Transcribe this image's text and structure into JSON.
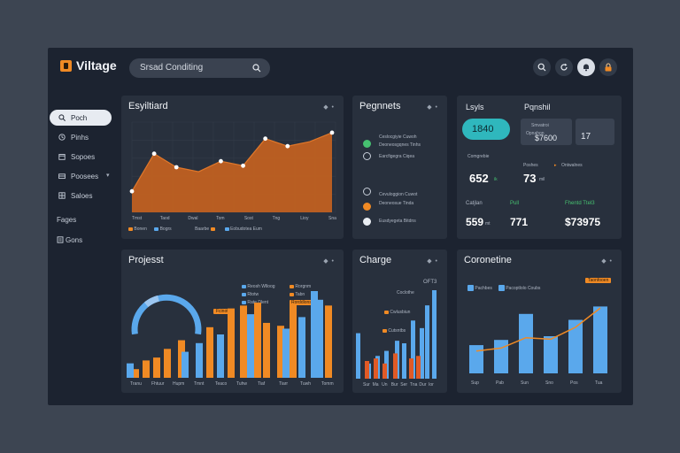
{
  "app": {
    "brand": "Viltage"
  },
  "search": {
    "placeholder": "Srsad Conditing"
  },
  "sidebar": {
    "items": [
      {
        "label": "Poch",
        "icon": "search-icon"
      },
      {
        "label": "Pinhs",
        "icon": "clock-icon"
      },
      {
        "label": "Sopoes",
        "icon": "calendar-icon"
      },
      {
        "label": "Poosees",
        "icon": "wallet-icon"
      },
      {
        "label": "Saloes",
        "icon": "grid-icon"
      }
    ],
    "section": "Fages",
    "footer_item": "Gons"
  },
  "colors": {
    "orange": "#f08a24",
    "blue": "#5aa8ec",
    "teal": "#2fb7bd",
    "green": "#46c070"
  },
  "cards": {
    "dashboard": {
      "title": "Esyiltiard",
      "x_labels": [
        "Tmst",
        "Taod",
        "Dwal",
        "Tom",
        "Sost",
        "Tng",
        "Lioy",
        "Sna"
      ],
      "legend": [
        {
          "label": "Bonen",
          "color": "#f08a24"
        },
        {
          "label": "Bogrs",
          "color": "#5aa8ec"
        },
        {
          "label": "Baarbe",
          "color": "#f08a24"
        },
        {
          "label": "Eobudotea Eum",
          "color": "#5aa8ec"
        }
      ]
    },
    "payments": {
      "title": "Pegnnets",
      "rows": [
        {
          "text": "Ceslocgiyie Cuwoh",
          "sub": "Deoneosgqnes Tinhs"
        },
        {
          "text": "Earcfigegra Ciqea",
          "sub": ""
        },
        {
          "text": "Cevuloggion Cuwot",
          "sub": "Deoneosue Tinda"
        },
        {
          "text": "Eusdyegeta Bitdns",
          "sub": ""
        }
      ]
    },
    "stats": {
      "title_a": "Lsyls",
      "title_b": "Pqnshil",
      "highlight": "1840",
      "box": {
        "lines": [
          "Smvatroi",
          "Opnahon"
        ],
        "value": "$7600",
        "side": "17"
      },
      "label_a": "Comgrebie",
      "value_a": "652",
      "value_a_unit": "ik",
      "label_b": "Poshes",
      "label_c": "Ontwalnes",
      "value_b": "73",
      "value_b_unit": "mil",
      "row_labels": [
        "Catjlan",
        "Pull",
        "Fhentd Ttel3"
      ],
      "row_values": [
        "559",
        "771",
        "$73975"
      ],
      "row_unit": "mt"
    },
    "projects": {
      "title": "Projesst",
      "legend_left": [
        "Reosh Wlloog",
        "Rtotw",
        "Rate Dlent"
      ],
      "legend_right": [
        "Rorgnm",
        "Tabn",
        "Rorddlons"
      ],
      "callout": "Fcinot",
      "x_labels": [
        "Tranu",
        "Fhtuur",
        "Hupm",
        "Tmnt",
        "Teaco",
        "Tuhw",
        "Tiaf",
        "Tiarr",
        "Tuwh",
        "Tomm"
      ]
    },
    "charge": {
      "title": "Charge",
      "top_value": "OFT3",
      "legend_top": "Coclothe",
      "legend": [
        "Cwlusbiun",
        "Cutsntbs"
      ],
      "x_labels": [
        "Sur",
        "Ma",
        "Un",
        "Bur",
        "Ser",
        "Tna",
        "Dur",
        "Ior"
      ]
    },
    "corona": {
      "title": "Coronetine",
      "legend": [
        "Pachbes",
        "Pacoptlolo Coubs"
      ],
      "callout": "Taonfooen",
      "x_labels": [
        "Sup",
        "Pab",
        "Sun",
        "Sno",
        "Pos",
        "Tua"
      ]
    }
  },
  "chart_data": [
    {
      "type": "area",
      "title": "Esyiltiard",
      "x": [
        1,
        2,
        3,
        4,
        5,
        6,
        7,
        8,
        9,
        10
      ],
      "values": [
        14,
        39,
        30,
        27,
        34,
        31,
        49,
        44,
        47,
        53
      ],
      "ylim": [
        0,
        60
      ]
    },
    {
      "type": "bar",
      "title": "Projesst",
      "series": [
        {
          "name": "orange",
          "values": [
            6,
            12,
            14,
            20,
            26,
            35,
            48,
            50,
            52,
            38,
            36,
            51,
            50
          ]
        },
        {
          "name": "blue",
          "values": [
            10,
            18,
            24,
            30,
            42,
            60,
            34,
            44,
            54
          ]
        }
      ],
      "gauge": {
        "fraction": 0.64
      }
    },
    {
      "type": "bar",
      "title": "Charge",
      "series": [
        {
          "name": "blue",
          "values": [
            36,
            12,
            18,
            22,
            30,
            28,
            46,
            40,
            58,
            70
          ]
        },
        {
          "name": "orange",
          "values": [
            14,
            16,
            12,
            20,
            16,
            18
          ]
        }
      ]
    },
    {
      "type": "bar",
      "title": "Coronetine",
      "categories": [
        "Sup",
        "Pab",
        "Sun",
        "Sno",
        "Pos",
        "Tua"
      ],
      "values": [
        38,
        45,
        80,
        50,
        72,
        90
      ],
      "line": [
        30,
        34,
        48,
        46,
        62,
        88
      ]
    }
  ]
}
